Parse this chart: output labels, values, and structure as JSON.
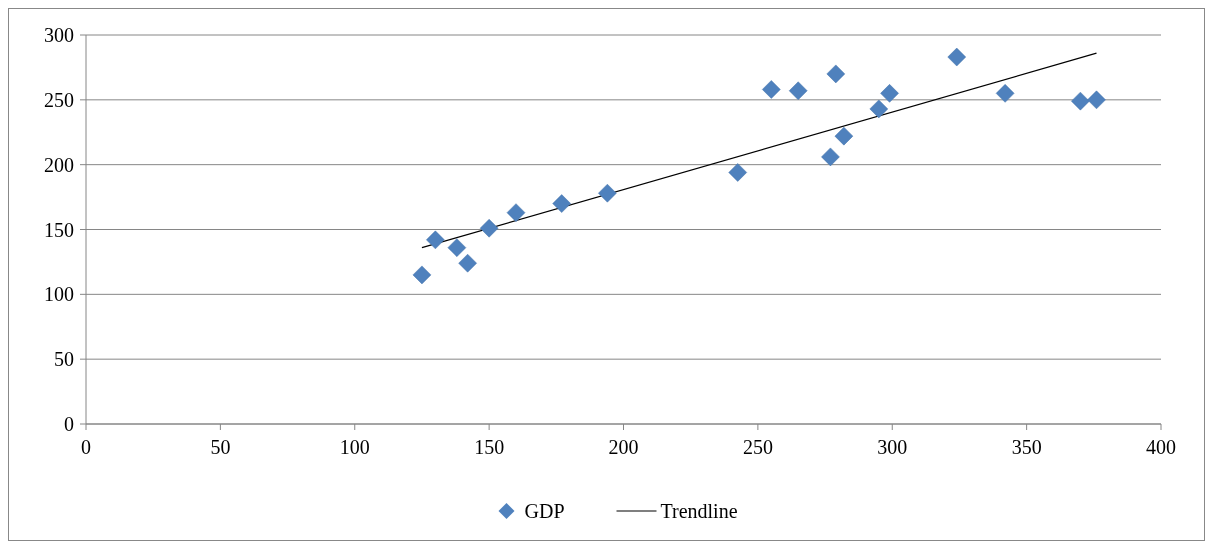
{
  "chart_data": {
    "type": "scatter",
    "xlim": [
      0,
      400
    ],
    "xticks": [
      0,
      50,
      100,
      150,
      200,
      250,
      300,
      350,
      400
    ],
    "ylim": [
      0,
      300
    ],
    "yticks": [
      0,
      50,
      100,
      150,
      200,
      250,
      300
    ],
    "grid": "y",
    "legend": "bottom",
    "series": [
      {
        "name": "GDP",
        "marker": "diamond",
        "color": "#4f81bd",
        "x": [
          125,
          130,
          138,
          142,
          150,
          160,
          177,
          194,
          242.5,
          255,
          265,
          277,
          279,
          282,
          295,
          299,
          324,
          342,
          370,
          376
        ],
        "values": [
          115,
          142,
          136,
          124,
          151,
          163,
          170,
          178,
          194,
          258,
          257,
          206,
          270,
          222,
          243,
          255,
          283,
          255,
          249,
          250
        ]
      },
      {
        "name": "Trendline",
        "type": "line",
        "color": "#000000",
        "line_style": "solid",
        "marker": "none",
        "x": [
          125,
          376
        ],
        "values": [
          136,
          286
        ]
      }
    ]
  }
}
